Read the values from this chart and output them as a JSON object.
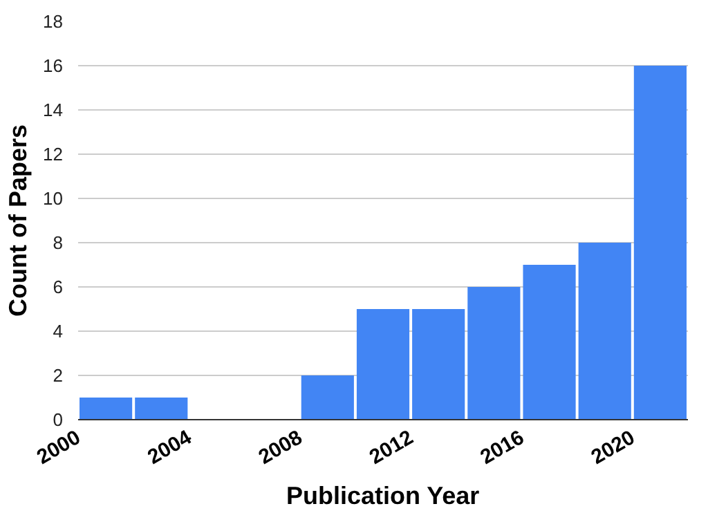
{
  "chart_data": {
    "type": "histogram",
    "xlabel": "Publication Year",
    "ylabel": "Count of Papers",
    "bins": [
      2000,
      2002,
      2004,
      2006,
      2008,
      2010,
      2012,
      2014,
      2016,
      2018,
      2020,
      2022
    ],
    "values": [
      1,
      1,
      0,
      0,
      2,
      5,
      5,
      6,
      7,
      8,
      16
    ],
    "color": "#4285f4",
    "xlim": [
      2000,
      2022
    ],
    "xticks": [
      2000,
      2004,
      2008,
      2012,
      2016,
      2020
    ],
    "ylim": [
      0,
      18
    ],
    "yticks": [
      0,
      2,
      4,
      6,
      8,
      10,
      12,
      14,
      16,
      18
    ],
    "grid": "y"
  }
}
